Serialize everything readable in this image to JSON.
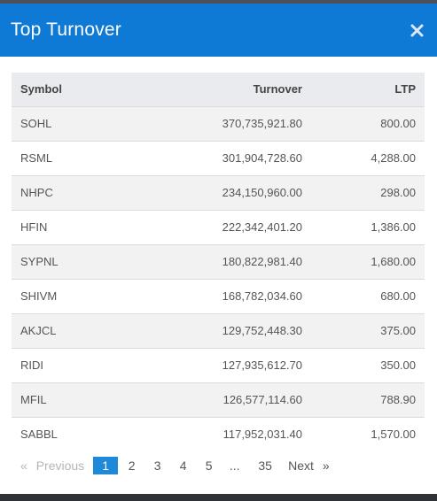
{
  "modal": {
    "title": "Top Turnover",
    "close_icon": "close-icon"
  },
  "table": {
    "headers": {
      "symbol": "Symbol",
      "turnover": "Turnover",
      "ltp": "LTP"
    },
    "rows": [
      {
        "symbol": "SOHL",
        "turnover": "370,735,921.80",
        "ltp": "800.00"
      },
      {
        "symbol": "RSML",
        "turnover": "301,904,728.60",
        "ltp": "4,288.00"
      },
      {
        "symbol": "NHPC",
        "turnover": "234,150,960.00",
        "ltp": "298.00"
      },
      {
        "symbol": "HFIN",
        "turnover": "222,342,401.20",
        "ltp": "1,386.00"
      },
      {
        "symbol": "SYPNL",
        "turnover": "180,822,981.40",
        "ltp": "1,680.00"
      },
      {
        "symbol": "SHIVM",
        "turnover": "168,782,034.60",
        "ltp": "680.00"
      },
      {
        "symbol": "AKJCL",
        "turnover": "129,752,448.30",
        "ltp": "375.00"
      },
      {
        "symbol": "RIDI",
        "turnover": "127,935,612.70",
        "ltp": "350.00"
      },
      {
        "symbol": "MFIL",
        "turnover": "126,577,114.60",
        "ltp": "788.90"
      },
      {
        "symbol": "SABBL",
        "turnover": "117,952,031.40",
        "ltp": "1,570.00"
      }
    ]
  },
  "pagination": {
    "prev_arrow": "«",
    "prev_label": "Previous",
    "pages": [
      "1",
      "2",
      "3",
      "4",
      "5"
    ],
    "active_page": "1",
    "ellipsis": "...",
    "last_page": "35",
    "next_label": "Next",
    "next_arrow": "»"
  },
  "colors": {
    "header_bg": "#0e7ad6",
    "active_page_bg": "#1e88d9"
  }
}
